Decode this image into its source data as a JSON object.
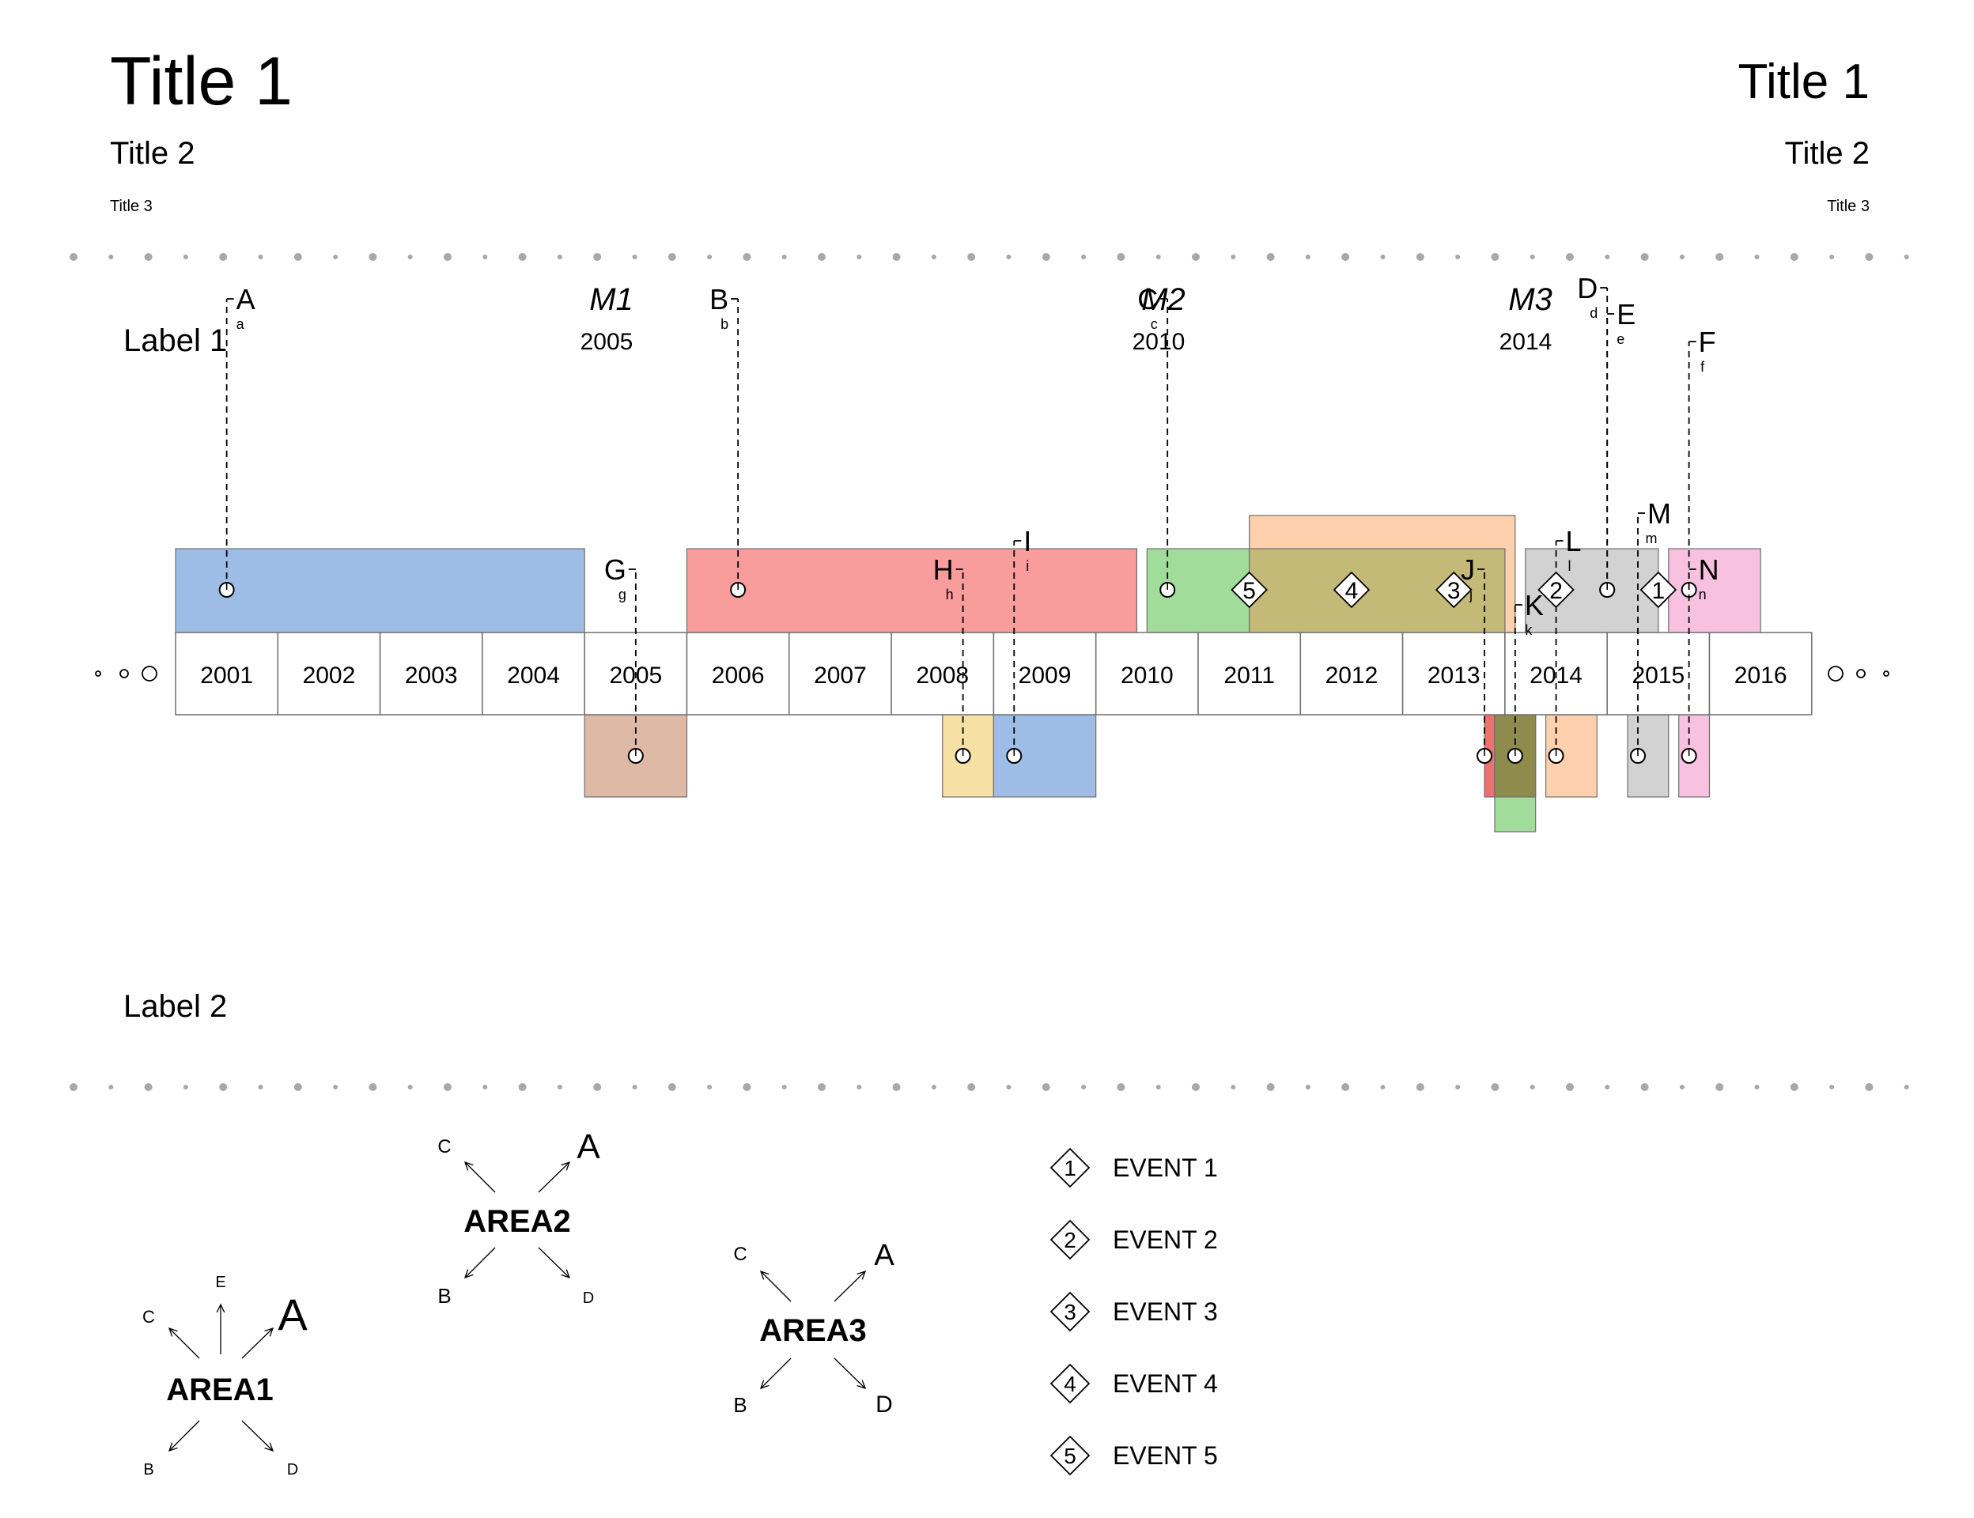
{
  "header": {
    "title1_left": "Title 1",
    "title1_right": "Title 1",
    "title2_left": "Title 2",
    "title2_right": "Title 2",
    "title3_left": "Title 3",
    "title3_right": "Title 3"
  },
  "labels": {
    "label1": "Label 1",
    "label2": "Label 2"
  },
  "milestones": [
    {
      "name": "M1",
      "year": "2005"
    },
    {
      "name": "M2",
      "year": "2010"
    },
    {
      "name": "M3",
      "year": "2014"
    }
  ],
  "years": [
    "2001",
    "2002",
    "2003",
    "2004",
    "2005",
    "2006",
    "2007",
    "2008",
    "2009",
    "2010",
    "2011",
    "2012",
    "2013",
    "2014",
    "2015",
    "2016"
  ],
  "upper_spans": [
    {
      "start": 2001.0,
      "end": 2005.0,
      "color": "#9dbde7"
    },
    {
      "start": 2006.0,
      "end": 2010.4,
      "color": "#f89c9c"
    },
    {
      "start": 2010.5,
      "end": 2011.5,
      "color": "#a2dc9b"
    },
    {
      "start": 2011.5,
      "end": 2014.1,
      "color": "#ffd0ad",
      "tall": true
    },
    {
      "start": 2011.5,
      "end": 2014.0,
      "color": "#c4ba77"
    },
    {
      "start": 2014.2,
      "end": 2015.5,
      "color": "#d2d2d2"
    },
    {
      "start": 2015.6,
      "end": 2016.5,
      "color": "#f9c1e0"
    }
  ],
  "lower_spans": [
    {
      "start": 2005.0,
      "end": 2006.0,
      "color": "#deb9a6"
    },
    {
      "start": 2008.5,
      "end": 2009.0,
      "color": "#f7e0a4"
    },
    {
      "start": 2009.0,
      "end": 2010.0,
      "color": "#9dbde7"
    },
    {
      "start": 2013.8,
      "end": 2013.9,
      "color": "#ee7070"
    },
    {
      "start": 2013.9,
      "end": 2014.3,
      "color": "#a2dc9b",
      "deep": true
    },
    {
      "start": 2013.9,
      "end": 2014.3,
      "color": "#8e8c4c"
    },
    {
      "start": 2014.4,
      "end": 2014.9,
      "color": "#ffd0ad"
    },
    {
      "start": 2015.2,
      "end": 2015.6,
      "color": "#d2d2d2"
    },
    {
      "start": 2015.7,
      "end": 2016.0,
      "color": "#f9c1e0"
    }
  ],
  "upper_events": [
    {
      "label": "A",
      "sub": "a",
      "x": 2001.5,
      "labelTop": 361,
      "side": "right"
    },
    {
      "label": "B",
      "sub": "b",
      "x": 2006.5,
      "labelTop": 361,
      "side": "left"
    },
    {
      "label": "C",
      "sub": "c",
      "x": 2010.7,
      "labelTop": 361,
      "side": "left"
    },
    {
      "label": "D",
      "sub": "d",
      "x": 2015.0,
      "labelTop": 347,
      "side": "left"
    },
    {
      "label": "E",
      "sub": "e",
      "x": 2015.0,
      "labelTop": 380,
      "side": "right"
    },
    {
      "label": "F",
      "sub": "f",
      "x": 2015.8,
      "labelTop": 415,
      "side": "right"
    }
  ],
  "lower_events": [
    {
      "label": "G",
      "sub": "g",
      "x": 2005.5,
      "labelTop": 703,
      "side": "left"
    },
    {
      "label": "H",
      "sub": "h",
      "x": 2008.7,
      "labelTop": 703,
      "side": "left"
    },
    {
      "label": "I",
      "sub": "i",
      "x": 2009.2,
      "labelTop": 667,
      "side": "right"
    },
    {
      "label": "J",
      "sub": "j",
      "x": 2013.8,
      "labelTop": 703,
      "side": "left"
    },
    {
      "label": "K",
      "sub": "k",
      "x": 2014.1,
      "labelTop": 748,
      "side": "right"
    },
    {
      "label": "L",
      "sub": "l",
      "x": 2014.5,
      "labelTop": 667,
      "side": "right"
    },
    {
      "label": "M",
      "sub": "m",
      "x": 2015.3,
      "labelTop": 632,
      "side": "right"
    },
    {
      "label": "N",
      "sub": "n",
      "x": 2015.8,
      "labelTop": 703,
      "side": "right"
    }
  ],
  "diamond_markers": [
    {
      "num": "5",
      "x": 2011.5
    },
    {
      "num": "4",
      "x": 2012.5
    },
    {
      "num": "3",
      "x": 2013.5
    },
    {
      "num": "2",
      "x": 2014.5
    },
    {
      "num": "1",
      "x": 2015.5
    }
  ],
  "areas": [
    {
      "name": "AREA1",
      "labels": {
        "A": "A",
        "B": "B",
        "C": "C",
        "D": "D",
        "E": "E"
      }
    },
    {
      "name": "AREA2",
      "labels": {
        "A": "A",
        "B": "B",
        "C": "C",
        "D": "D"
      }
    },
    {
      "name": "AREA3",
      "labels": {
        "A": "A",
        "B": "B",
        "C": "C",
        "D": "D"
      }
    }
  ],
  "legend": [
    {
      "num": "1",
      "text": "EVENT 1"
    },
    {
      "num": "2",
      "text": "EVENT 2"
    },
    {
      "num": "3",
      "text": "EVENT 3"
    },
    {
      "num": "4",
      "text": "EVENT 4"
    },
    {
      "num": "5",
      "text": "EVENT 5"
    }
  ]
}
